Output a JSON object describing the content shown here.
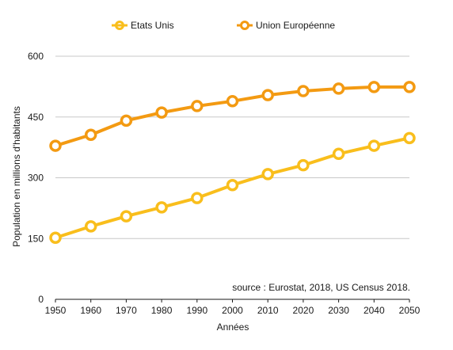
{
  "chart_data": {
    "type": "line",
    "x": [
      1950,
      1960,
      1970,
      1980,
      1990,
      2000,
      2010,
      2020,
      2030,
      2040,
      2050
    ],
    "series": [
      {
        "name": "Etats Unis",
        "color": "#F9BE1C",
        "values": [
          152,
          180,
          205,
          227,
          250,
          282,
          309,
          331,
          359,
          379,
          398
        ]
      },
      {
        "name": "Union Européenne",
        "color": "#F39A12",
        "values": [
          379,
          406,
          441,
          461,
          477,
          489,
          504,
          514,
          520,
          524,
          524
        ]
      }
    ],
    "xlabel": "Années",
    "ylabel": "Population en millions d'habitants",
    "ylim": [
      0,
      600
    ],
    "yticks": [
      0,
      150,
      300,
      450,
      600
    ],
    "grid": true,
    "legend_position": "top",
    "annotation": "source : Eurostat, 2018, US Census 2018."
  }
}
